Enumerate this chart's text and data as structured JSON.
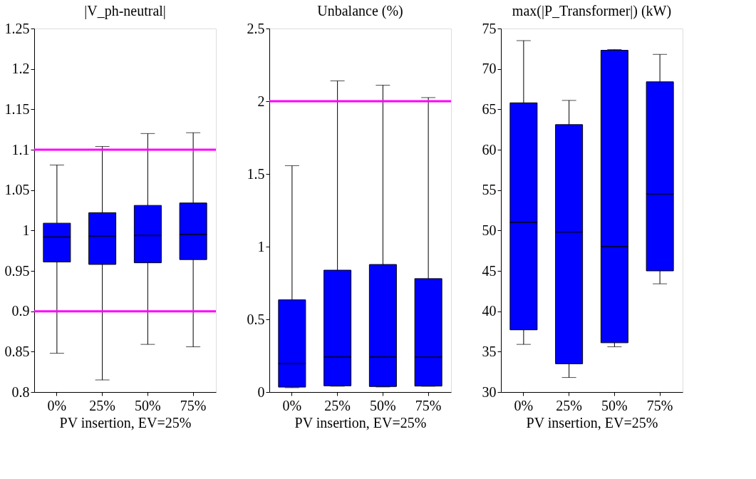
{
  "chart_data": [
    {
      "type": "box",
      "title": "|V_ph-neutral|",
      "xlabel": "PV insertion, EV=25%",
      "categories": [
        "0%",
        "25%",
        "50%",
        "75%"
      ],
      "series": [
        {
          "color": "#0000ff",
          "boxes": [
            {
              "low": 0.848,
              "q1": 0.961,
              "median": 0.992,
              "q3": 1.009,
              "high": 1.081
            },
            {
              "low": 0.815,
              "q1": 0.958,
              "median": 0.993,
              "q3": 1.022,
              "high": 1.104
            },
            {
              "low": 0.859,
              "q1": 0.96,
              "median": 0.994,
              "q3": 1.031,
              "high": 1.12
            },
            {
              "low": 0.856,
              "q1": 0.964,
              "median": 0.995,
              "q3": 1.034,
              "high": 1.121
            }
          ]
        }
      ],
      "ylim": [
        0.8,
        1.25
      ],
      "yticks": [
        0.8,
        0.85,
        0.9,
        0.95,
        1,
        1.05,
        1.1,
        1.15,
        1.2,
        1.25
      ],
      "grid": false,
      "ref_lines": [
        {
          "axis": "y",
          "value": 1.1,
          "color": "#ff00ff"
        },
        {
          "axis": "y",
          "value": 0.9,
          "color": "#ff00ff"
        }
      ]
    },
    {
      "type": "box",
      "title": "Unbalance (%)",
      "xlabel": "PV insertion, EV=25%",
      "categories": [
        "0%",
        "25%",
        "50%",
        "75%"
      ],
      "series": [
        {
          "color": "#0000ff",
          "boxes": [
            {
              "low": 0.03,
              "q1": 0.034,
              "median": 0.196,
              "q3": 0.634,
              "high": 1.557
            },
            {
              "low": 0.04,
              "q1": 0.043,
              "median": 0.241,
              "q3": 0.838,
              "high": 2.14
            },
            {
              "low": 0.035,
              "q1": 0.038,
              "median": 0.241,
              "q3": 0.877,
              "high": 2.11
            },
            {
              "low": 0.04,
              "q1": 0.041,
              "median": 0.24,
              "q3": 0.78,
              "high": 2.025
            }
          ]
        }
      ],
      "ylim": [
        0,
        2.5
      ],
      "yticks": [
        0,
        0.5,
        1,
        1.5,
        2,
        2.5
      ],
      "grid": false,
      "ref_lines": [
        {
          "axis": "y",
          "value": 2,
          "color": "#ff00ff"
        }
      ]
    },
    {
      "type": "box",
      "title": "max(|P_Transformer|) (kW)",
      "xlabel": "PV insertion, EV=25%",
      "categories": [
        "0%",
        "25%",
        "50%",
        "75%"
      ],
      "series": [
        {
          "color": "#0000ff",
          "boxes": [
            {
              "low": 35.9,
              "q1": 37.7,
              "median": 51.0,
              "q3": 65.8,
              "high": 73.5
            },
            {
              "low": 31.8,
              "q1": 33.5,
              "median": 49.8,
              "q3": 63.1,
              "high": 66.1
            },
            {
              "low": 35.6,
              "q1": 36.1,
              "median": 48.0,
              "q3": 72.3,
              "high": 72.4
            },
            {
              "low": 43.4,
              "q1": 45.0,
              "median": 54.5,
              "q3": 68.4,
              "high": 71.8
            }
          ]
        }
      ],
      "ylim": [
        30,
        75
      ],
      "yticks": [
        30,
        35,
        40,
        45,
        50,
        55,
        60,
        65,
        70,
        75
      ],
      "grid": false
    }
  ]
}
